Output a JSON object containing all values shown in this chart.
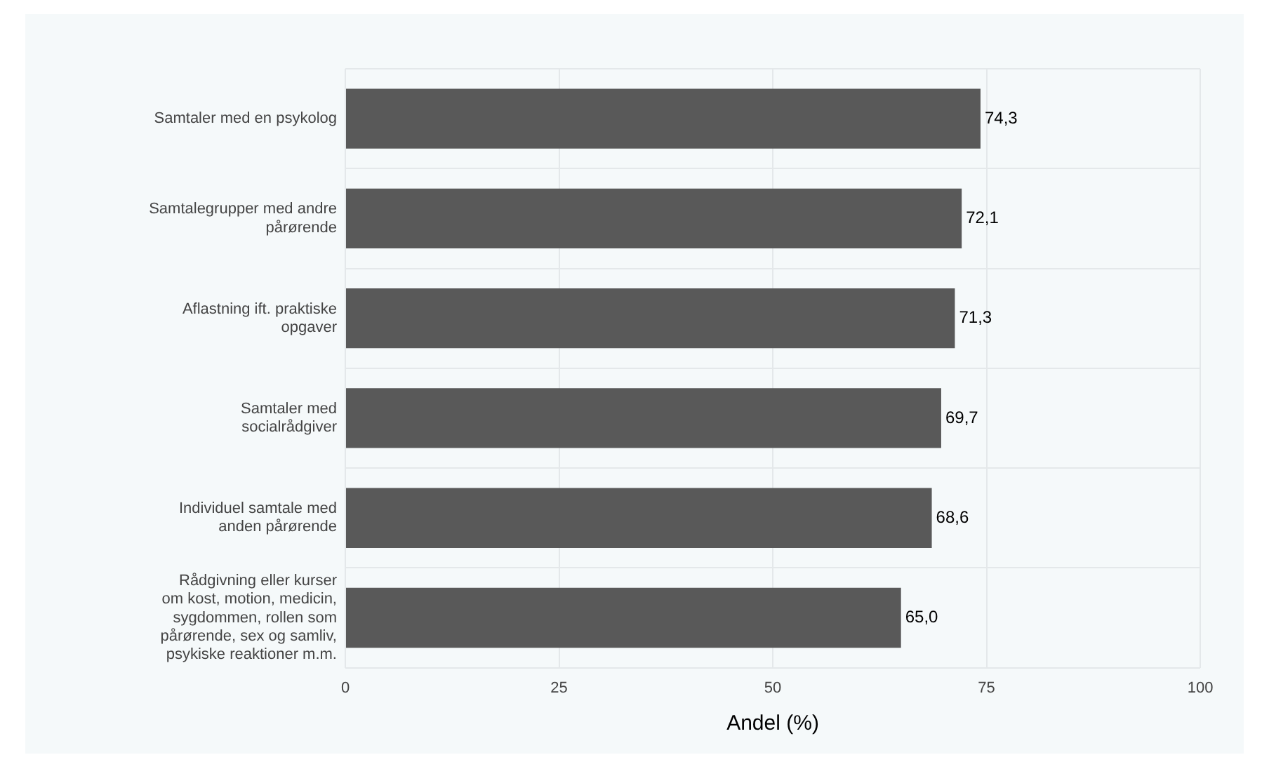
{
  "chart_data": {
    "type": "bar",
    "orientation": "horizontal",
    "xlabel": "Andel (%)",
    "categories": [
      "Samtaler med en psykolog",
      "Samtalegrupper med andre pårørende",
      "Aflastning ift. praktiske opgaver",
      "Samtaler med socialrådgiver",
      "Individuel samtale med anden pårørende",
      "Rådgivning eller kurser om kost, motion, medicin, sygdommen, rollen som pårørende, sex og samliv, psykiske reaktioner m.m."
    ],
    "values": [
      74.3,
      72.1,
      71.3,
      69.7,
      68.6,
      65.0
    ],
    "value_labels": [
      "74,3",
      "72,1",
      "71,3",
      "69,7",
      "68,6",
      "65,0"
    ],
    "color": "#595959",
    "xlim": [
      0,
      100
    ],
    "xticks": [
      0,
      25,
      50,
      75,
      100
    ],
    "grid": true
  }
}
